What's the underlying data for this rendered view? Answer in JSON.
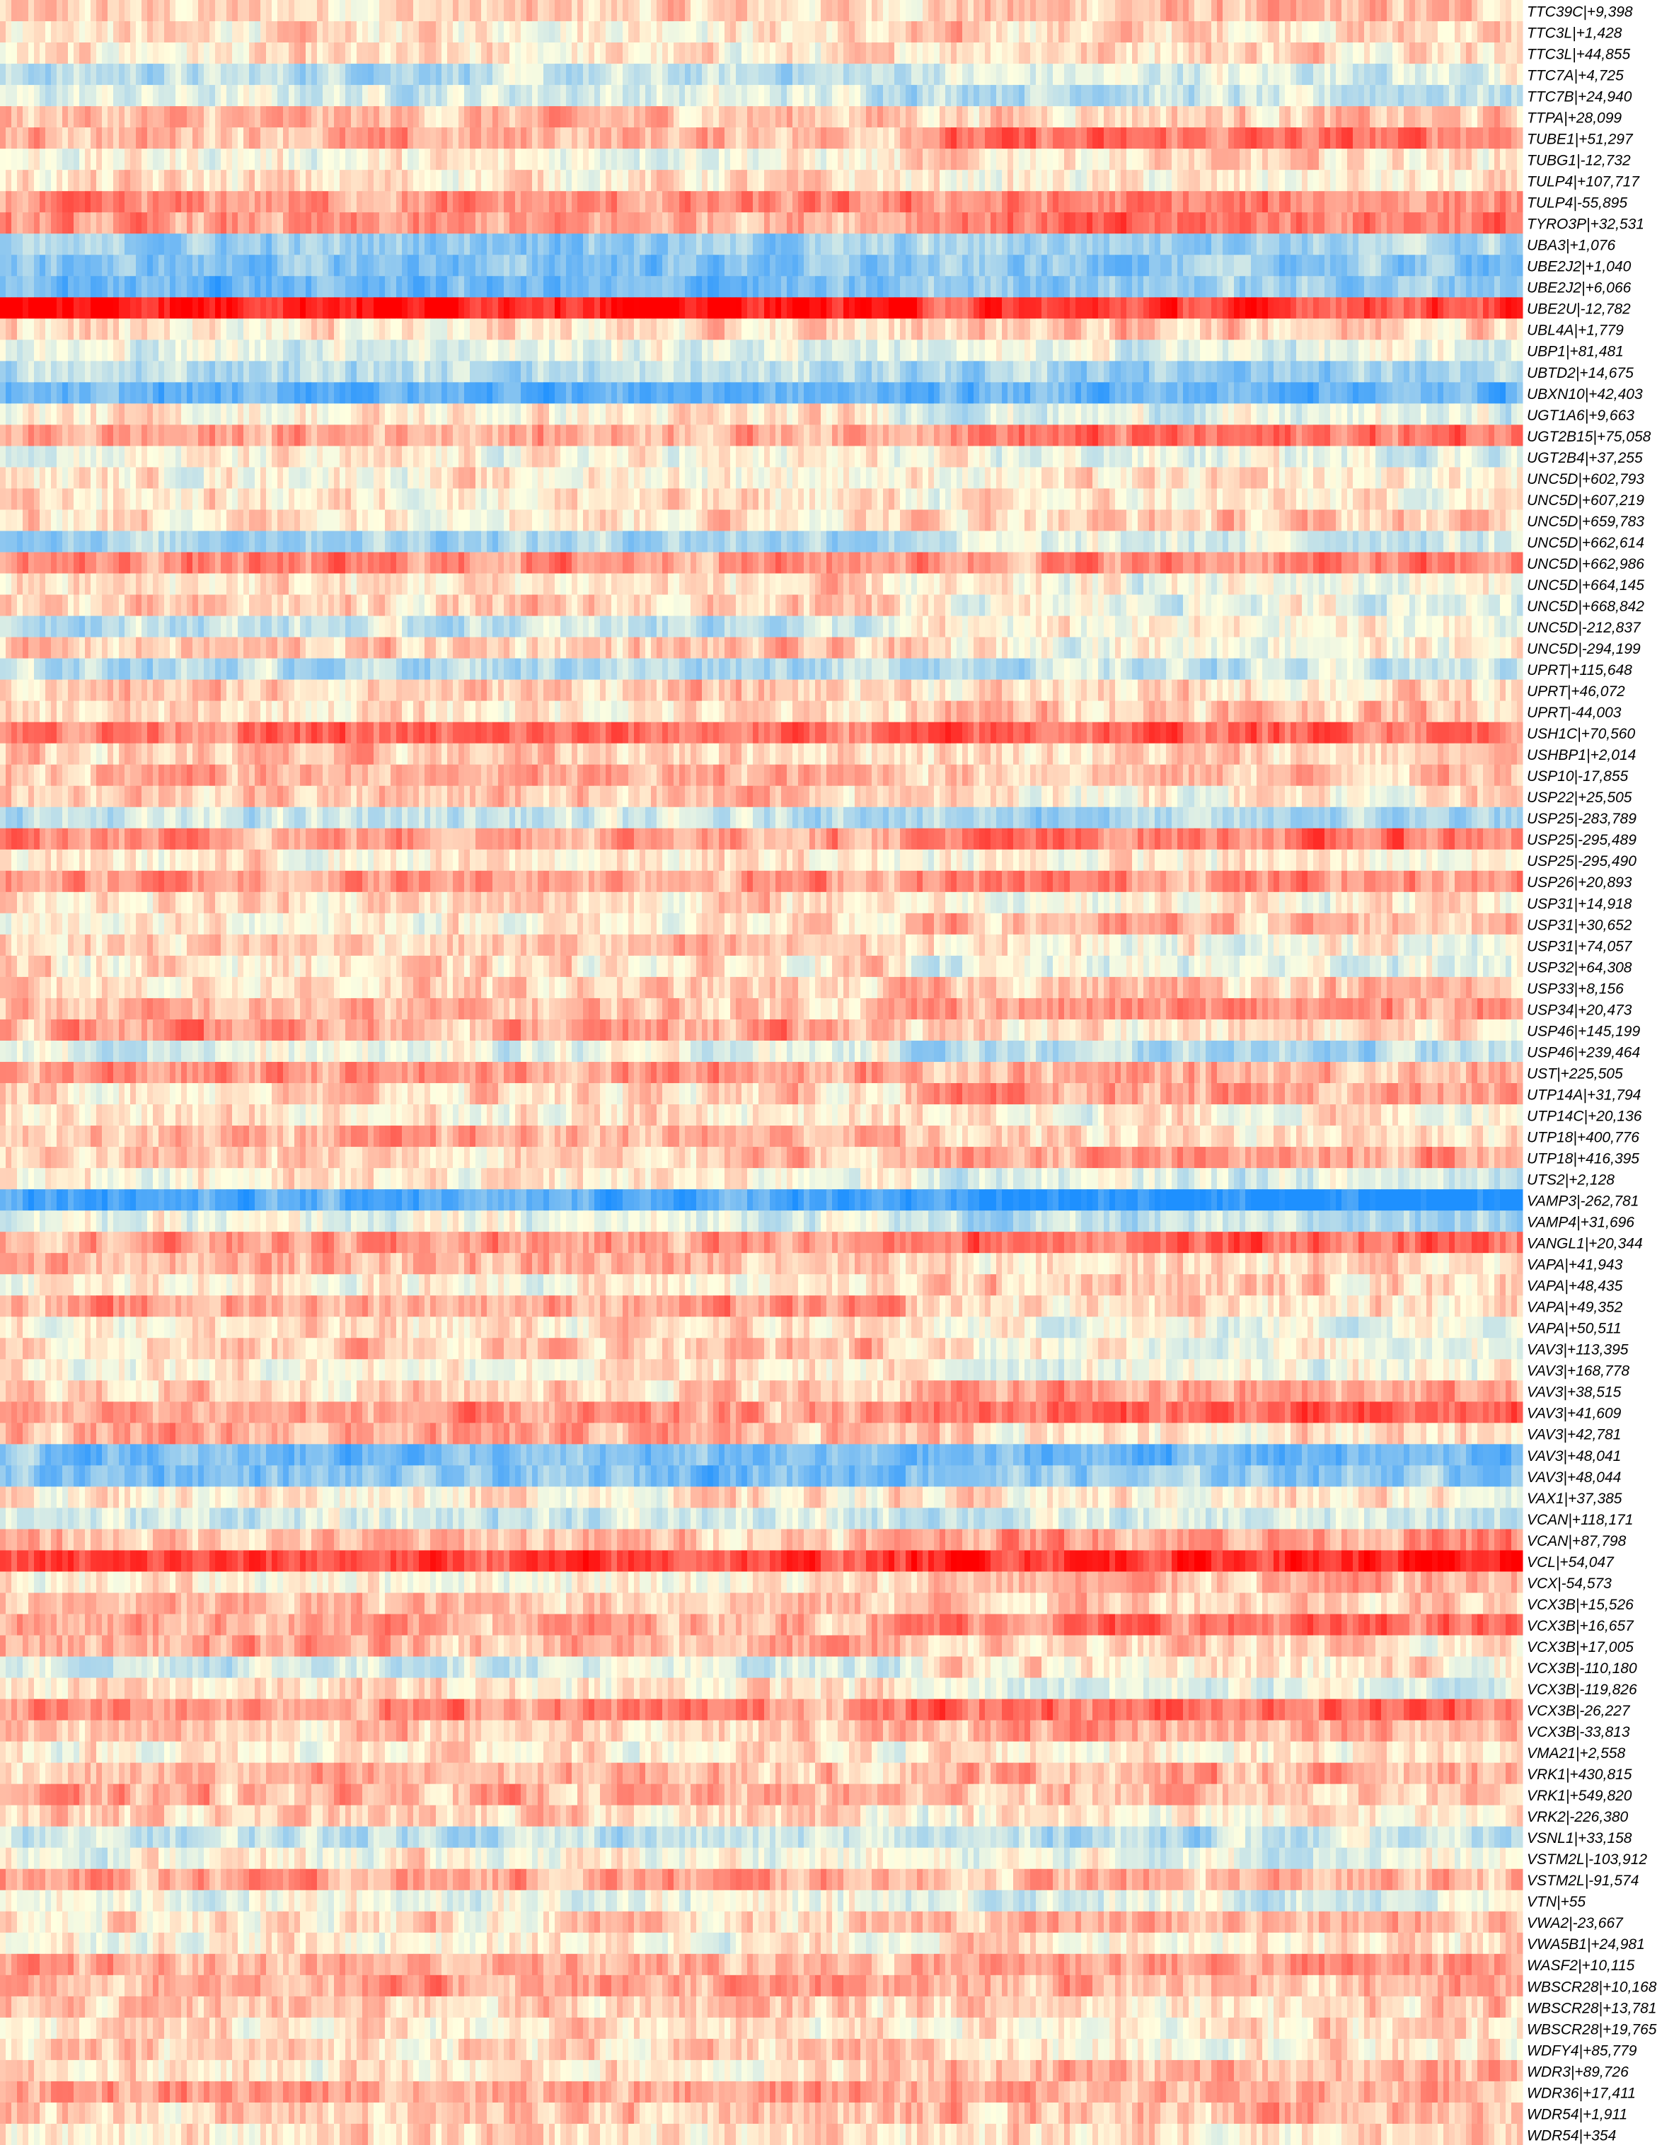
{
  "chart_data": {
    "type": "heatmap",
    "title": "",
    "xlabel": "",
    "ylabel": "",
    "legend": "none",
    "grid": false,
    "colormap": {
      "low": "#1e90ff",
      "mid": "#ffffe0",
      "high": "#ff0000"
    },
    "column_groups": [
      {
        "columns": 650,
        "note": ""
      },
      {
        "columns": 450,
        "note": ""
      }
    ],
    "rows": [
      {
        "label": "TTC39C|+9,398",
        "level": 0.15
      },
      {
        "label": "TTC3L|+1,428",
        "level": 0.1
      },
      {
        "label": "TTC3L|+44,855",
        "level": 0.05
      },
      {
        "label": "TTC7A|+4,725",
        "level": -0.3
      },
      {
        "label": "TTC7B|+24,940",
        "level": -0.15
      },
      {
        "label": "TTPA|+28,099",
        "level": 0.25
      },
      {
        "label": "TUBE1|+51,297",
        "level": 0.3
      },
      {
        "label": "TUBG1|-12,732",
        "level": 0.0
      },
      {
        "label": "TULP4|+107,717",
        "level": 0.1
      },
      {
        "label": "TULP4|-55,895",
        "level": 0.4
      },
      {
        "label": "TYRO3P|+32,531",
        "level": 0.35
      },
      {
        "label": "UBA3|+1,076",
        "level": -0.45
      },
      {
        "label": "UBE2J2|+1,040",
        "level": -0.55
      },
      {
        "label": "UBE2J2|+6,066",
        "level": -0.65
      },
      {
        "label": "UBE2U|-12,782",
        "level": 0.95
      },
      {
        "label": "UBL4A|+1,779",
        "level": 0.1
      },
      {
        "label": "UBP1|+81,481",
        "level": -0.1
      },
      {
        "label": "UBTD2|+14,675",
        "level": -0.3
      },
      {
        "label": "UBXN10|+42,403",
        "level": -0.7
      },
      {
        "label": "UGT1A6|+9,663",
        "level": 0.05
      },
      {
        "label": "UGT2B15|+75,058",
        "level": 0.35
      },
      {
        "label": "UGT2B4|+37,255",
        "level": 0.0
      },
      {
        "label": "UNC5D|+602,793",
        "level": 0.05
      },
      {
        "label": "UNC5D|+607,219",
        "level": 0.1
      },
      {
        "label": "UNC5D|+659,783",
        "level": 0.15
      },
      {
        "label": "UNC5D|+662,614",
        "level": -0.35
      },
      {
        "label": "UNC5D|+662,986",
        "level": 0.45
      },
      {
        "label": "UNC5D|+664,145",
        "level": 0.1
      },
      {
        "label": "UNC5D|+668,842",
        "level": 0.15
      },
      {
        "label": "UNC5D|-212,837",
        "level": -0.25
      },
      {
        "label": "UNC5D|-294,199",
        "level": 0.2
      },
      {
        "label": "UPRT|+115,648",
        "level": -0.3
      },
      {
        "label": "UPRT|+46,072",
        "level": 0.2
      },
      {
        "label": "UPRT|-44,003",
        "level": 0.1
      },
      {
        "label": "USH1C|+70,560",
        "level": 0.55
      },
      {
        "label": "USHBP1|+2,014",
        "level": 0.2
      },
      {
        "label": "USP10|-17,855",
        "level": 0.3
      },
      {
        "label": "USP22|+25,505",
        "level": 0.25
      },
      {
        "label": "USP25|-283,789",
        "level": -0.25
      },
      {
        "label": "USP25|-295,489",
        "level": 0.4
      },
      {
        "label": "USP25|-295,490",
        "level": 0.05
      },
      {
        "label": "USP26|+20,893",
        "level": 0.4
      },
      {
        "label": "USP31|+14,918",
        "level": 0.15
      },
      {
        "label": "USP31|+30,652",
        "level": 0.05
      },
      {
        "label": "USP31|+74,057",
        "level": 0.2
      },
      {
        "label": "USP32|+64,308",
        "level": 0.1
      },
      {
        "label": "USP33|+8,156",
        "level": 0.15
      },
      {
        "label": "USP34|+20,473",
        "level": 0.25
      },
      {
        "label": "USP46|+145,199",
        "level": 0.35
      },
      {
        "label": "USP46|+239,464",
        "level": -0.1
      },
      {
        "label": "UST|+225,505",
        "level": 0.4
      },
      {
        "label": "UTP14A|+31,794",
        "level": 0.15
      },
      {
        "label": "UTP14C|+20,136",
        "level": 0.1
      },
      {
        "label": "UTP18|+400,776",
        "level": 0.3
      },
      {
        "label": "UTP18|+416,395",
        "level": 0.2
      },
      {
        "label": "UTS2|+2,128",
        "level": 0.05
      },
      {
        "label": "VAMP3|-262,781",
        "level": -0.75
      },
      {
        "label": "VAMP4|+31,696",
        "level": -0.1
      },
      {
        "label": "VANGL1|+20,344",
        "level": 0.4
      },
      {
        "label": "VAPA|+41,943",
        "level": 0.3
      },
      {
        "label": "VAPA|+48,435",
        "level": 0.05
      },
      {
        "label": "VAPA|+49,352",
        "level": 0.35
      },
      {
        "label": "VAPA|+50,511",
        "level": 0.1
      },
      {
        "label": "VAV3|+113,395",
        "level": 0.25
      },
      {
        "label": "VAV3|+168,778",
        "level": 0.05
      },
      {
        "label": "VAV3|+38,515",
        "level": 0.2
      },
      {
        "label": "VAV3|+41,609",
        "level": 0.35
      },
      {
        "label": "VAV3|+42,781",
        "level": 0.3
      },
      {
        "label": "VAV3|+48,041",
        "level": -0.6
      },
      {
        "label": "VAV3|+48,044",
        "level": -0.55
      },
      {
        "label": "VAX1|+37,385",
        "level": 0.1
      },
      {
        "label": "VCAN|+118,171",
        "level": -0.2
      },
      {
        "label": "VCAN|+87,798",
        "level": 0.25
      },
      {
        "label": "VCL|+54,047",
        "level": 0.7
      },
      {
        "label": "VCX|-54,573",
        "level": 0.05
      },
      {
        "label": "VCX3B|+15,526",
        "level": 0.25
      },
      {
        "label": "VCX3B|+16,657",
        "level": 0.35
      },
      {
        "label": "VCX3B|+17,005",
        "level": 0.3
      },
      {
        "label": "VCX3B|-110,180",
        "level": -0.15
      },
      {
        "label": "VCX3B|-119,826",
        "level": 0.1
      },
      {
        "label": "VCX3B|-26,227",
        "level": 0.45
      },
      {
        "label": "VCX3B|-33,813",
        "level": 0.2
      },
      {
        "label": "VMA21|+2,558",
        "level": 0.05
      },
      {
        "label": "VRK1|+430,815",
        "level": 0.25
      },
      {
        "label": "VRK1|+549,820",
        "level": 0.3
      },
      {
        "label": "VRK2|-226,380",
        "level": 0.15
      },
      {
        "label": "VSNL1|+33,158",
        "level": -0.25
      },
      {
        "label": "VSTM2L|-103,912",
        "level": 0.0
      },
      {
        "label": "VSTM2L|-91,574",
        "level": 0.35
      },
      {
        "label": "VTN|+55",
        "level": -0.05
      },
      {
        "label": "VWA2|-23,667",
        "level": 0.1
      },
      {
        "label": "VWA5B1|+24,981",
        "level": 0.05
      },
      {
        "label": "WASF2|+10,115",
        "level": 0.3
      },
      {
        "label": "WBSCR28|+10,168",
        "level": 0.35
      },
      {
        "label": "WBSCR28|+13,781",
        "level": 0.2
      },
      {
        "label": "WBSCR28|+19,765",
        "level": 0.1
      },
      {
        "label": "WDFY4|+85,779",
        "level": 0.15
      },
      {
        "label": "WDR3|+89,726",
        "level": 0.1
      },
      {
        "label": "WDR36|+17,411",
        "level": 0.4
      },
      {
        "label": "WDR54|+1,911",
        "level": 0.2
      },
      {
        "label": "WDR54|+354",
        "level": 0.1
      }
    ]
  }
}
